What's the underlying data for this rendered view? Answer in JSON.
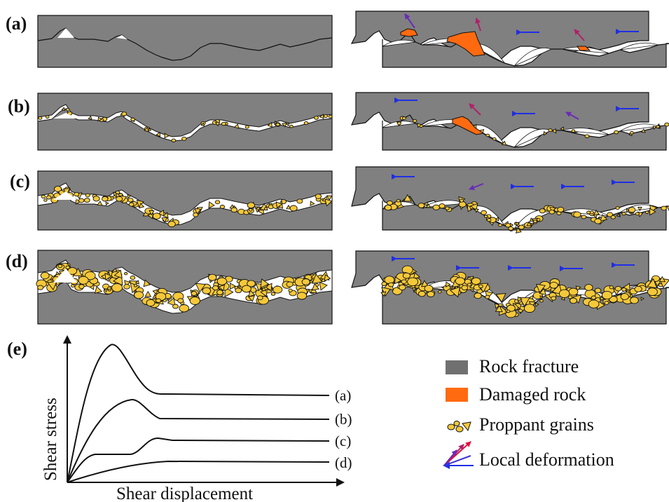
{
  "panel_labels": [
    "(a)",
    "(b)",
    "(c)",
    "(d)",
    "(e)"
  ],
  "legend": {
    "rock": "Rock fracture",
    "damaged": "Damaged rock",
    "proppant": "Proppant grains",
    "deformation": "Local deformation"
  },
  "axes": {
    "xlabel": "Shear displacement",
    "ylabel": "Shear stress"
  },
  "curve_labels": [
    "(a)",
    "(b)",
    "(c)",
    "(d)"
  ],
  "colors": {
    "rock": "#808080",
    "damaged": "#ff6a10",
    "proppant": "#f5c83a",
    "arrow_blue": "#1f2ee6",
    "arrow_purple": "#6a2bb8",
    "arrow_magenta": "#b0206a",
    "arrow_red": "#e0103a"
  }
}
